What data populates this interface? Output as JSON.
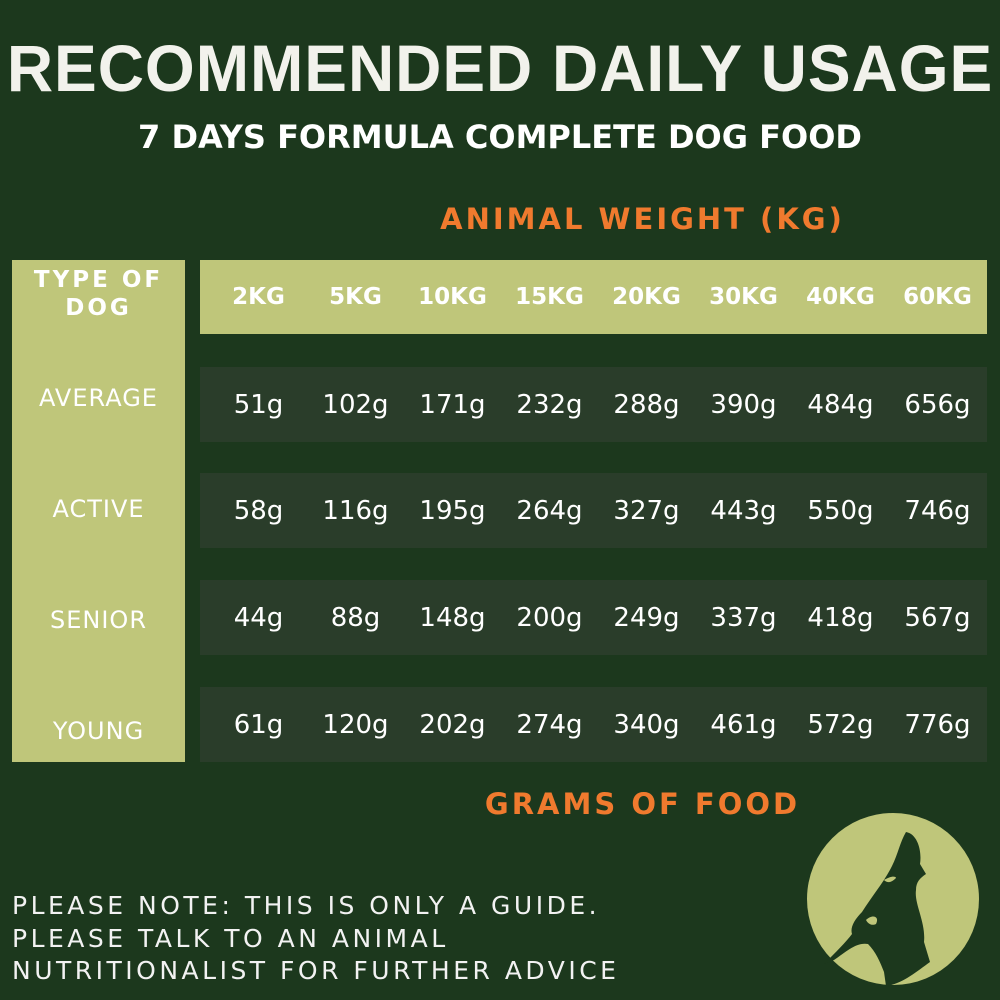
{
  "title": "RECOMMENDED DAILY USAGE",
  "subtitle": "7 DAYS FORMULA COMPLETE DOG FOOD",
  "weight_label": "ANIMAL WEIGHT (KG)",
  "type_label": "TYPE OF DOG",
  "weights": [
    "2KG",
    "5KG",
    "10KG",
    "15KG",
    "20KG",
    "30KG",
    "40KG",
    "60KG"
  ],
  "rows": [
    {
      "type": "AVERAGE",
      "values": [
        "51g",
        "102g",
        "171g",
        "232g",
        "288g",
        "390g",
        "484g",
        "656g"
      ]
    },
    {
      "type": "ACTIVE",
      "values": [
        "58g",
        "116g",
        "195g",
        "264g",
        "327g",
        "443g",
        "550g",
        "746g"
      ]
    },
    {
      "type": "SENIOR",
      "values": [
        "44g",
        "88g",
        "148g",
        "200g",
        "249g",
        "337g",
        "418g",
        "567g"
      ]
    },
    {
      "type": "YOUNG",
      "values": [
        "61g",
        "120g",
        "202g",
        "274g",
        "340g",
        "461g",
        "572g",
        "776g"
      ]
    }
  ],
  "grams_label": "GRAMS OF FOOD",
  "note": [
    "PLEASE NOTE: THIS IS ONLY A GUIDE.",
    "PLEASE TALK TO AN ANIMAL",
    "NUTRITIONALIST FOR FURTHER ADVICE"
  ],
  "colors": {
    "background": "#1c381d",
    "accent_green": "#bfc67a",
    "row_bg": "#2a3d2a",
    "orange": "#f07a2e"
  },
  "logo_icon": "howling-wolf-moon-icon"
}
